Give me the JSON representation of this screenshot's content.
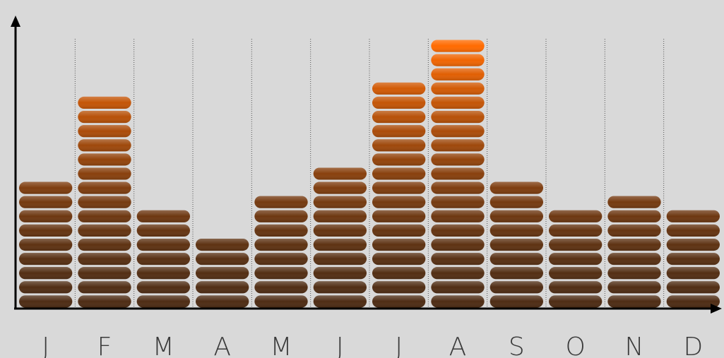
{
  "chart_data": {
    "type": "segmented-bar",
    "categories": [
      "J",
      "F",
      "M",
      "A",
      "M",
      "J",
      "J",
      "A",
      "S",
      "O",
      "N",
      "D"
    ],
    "values": [
      9,
      15,
      7,
      5,
      8,
      10,
      16,
      19,
      9,
      7,
      8,
      7
    ],
    "color_low": "#4e2c14",
    "color_high": "#ff6a00",
    "grid": true
  }
}
